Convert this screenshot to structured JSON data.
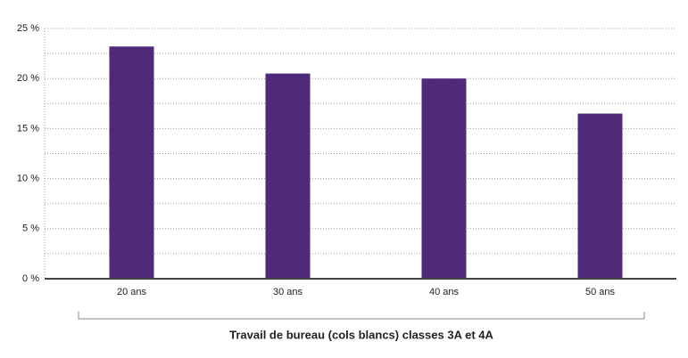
{
  "chart_data": {
    "type": "bar",
    "x_label": "Travail de bureau (cols blancs) classes 3A et 4A",
    "categories": [
      "20 ans",
      "30 ans",
      "40 ans",
      "50 ans"
    ],
    "values": [
      23.2,
      20.5,
      20.0,
      16.5
    ],
    "color": "#4e2a78",
    "ylim": [
      0,
      25
    ],
    "yticks": [
      {
        "value": 0,
        "label": "0 %"
      },
      {
        "value": 5,
        "label": "5 %"
      },
      {
        "value": 10,
        "label": "10 %"
      },
      {
        "value": 15,
        "label": "15 %"
      },
      {
        "value": 20,
        "label": "20 %"
      },
      {
        "value": 25,
        "label": "25 %"
      }
    ],
    "minor_yticks": [
      2.5,
      7.5,
      12.5,
      17.5,
      22.5
    ],
    "grid": true
  }
}
